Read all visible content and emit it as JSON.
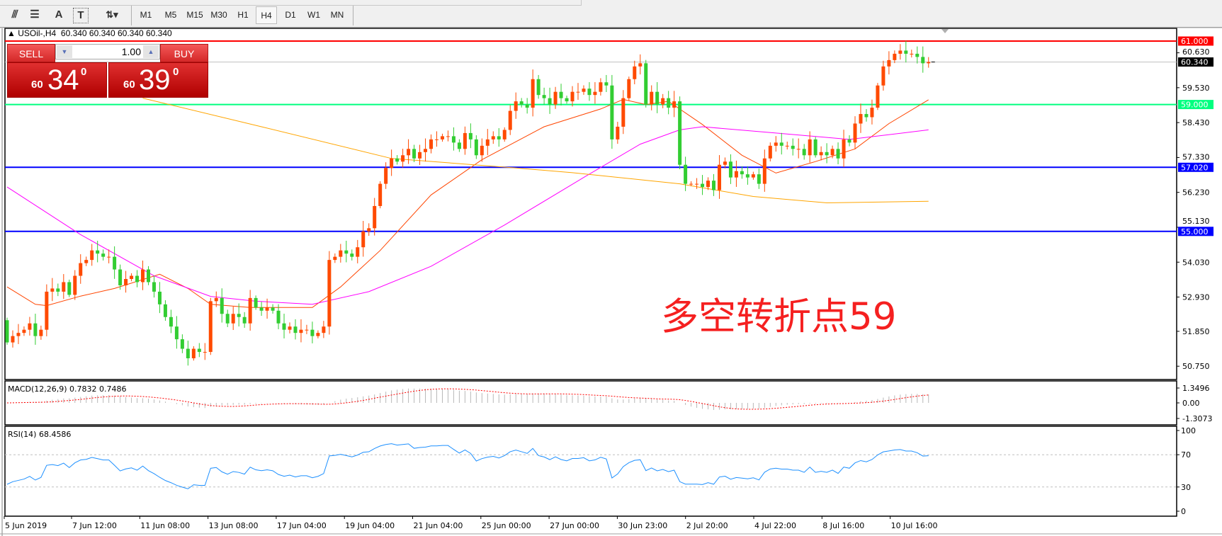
{
  "toolbar": {
    "tools": [
      {
        "name": "elliott-wave-tool",
        "glyph": "⫻"
      },
      {
        "name": "fibonacci-tool",
        "glyph": "☰"
      },
      {
        "name": "text-tool",
        "glyph": "A"
      },
      {
        "name": "text-label-tool",
        "glyph": "T"
      },
      {
        "name": "arrows-tool",
        "glyph": "⇅▾"
      }
    ],
    "timeframes": [
      "M1",
      "M5",
      "M15",
      "M30",
      "H1",
      "H4",
      "D1",
      "W1",
      "MN"
    ],
    "active_timeframe": "H4"
  },
  "chart_header": "USOil-,H4  60.340 60.340 60.340 60.340",
  "trade_panel": {
    "sell_label": "SELL",
    "buy_label": "BUY",
    "lot": "1.00",
    "sell_price": {
      "prefix": "60",
      "big": "34",
      "sup": "0"
    },
    "buy_price": {
      "prefix": "60",
      "big": "39",
      "sup": "0"
    },
    "color": "#d42828"
  },
  "annotation": "多空转折点59",
  "price_axis": {
    "ticks": [
      "60.630",
      "59.530",
      "58.430",
      "57.330",
      "56.230",
      "55.130",
      "54.030",
      "52.930",
      "51.850",
      "50.750"
    ],
    "levels": [
      {
        "label": "61.000",
        "value": 61.0,
        "color": "#ff0000",
        "text": "#ffffff"
      },
      {
        "label": "60.340",
        "value": 60.34,
        "color": "#000000",
        "text": "#ffffff",
        "line": "#c0c0c0"
      },
      {
        "label": "59.000",
        "value": 59.0,
        "color": "#00ff7f",
        "text": "#ffffff"
      },
      {
        "label": "57.020",
        "value": 57.02,
        "color": "#0000ff",
        "text": "#ffffff"
      },
      {
        "label": "55.000",
        "value": 55.0,
        "color": "#0000ff",
        "text": "#ffffff"
      }
    ]
  },
  "macd": {
    "label": "MACD(12,26,9) 0.7832 0.7486",
    "ticks": [
      "1.3496",
      "0.00",
      "-1.3073"
    ]
  },
  "rsi": {
    "label": "RSI(14) 68.4586",
    "ticks": [
      "100",
      "70",
      "30",
      "0"
    ]
  },
  "time_axis": [
    "5 Jun 2019",
    "7 Jun 12:00",
    "11 Jun 08:00",
    "13 Jun 08:00",
    "17 Jun 04:00",
    "19 Jun 04:00",
    "21 Jun 04:00",
    "25 Jun 00:00",
    "27 Jun 00:00",
    "30 Jun 23:00",
    "2 Jul 20:00",
    "4 Jul 22:00",
    "8 Jul 16:00",
    "10 Jul 16:00"
  ],
  "chart_data": {
    "type": "candlestick",
    "symbol": "USOil-",
    "timeframe": "H4",
    "ylim": [
      50.3,
      61.4
    ],
    "grid": false,
    "up_color": "#ff4a00",
    "down_color": "#32cd32",
    "first_open": 52.2,
    "closes": [
      51.5,
      51.7,
      51.8,
      51.9,
      52.1,
      51.7,
      51.9,
      53.1,
      53.2,
      53.1,
      53.4,
      53.0,
      53.6,
      54.0,
      54.1,
      54.4,
      54.3,
      54.2,
      54.2,
      53.8,
      53.3,
      53.5,
      53.6,
      53.4,
      53.8,
      53.4,
      53.1,
      52.7,
      52.3,
      52.0,
      51.6,
      51.3,
      51.0,
      51.3,
      51.2,
      51.2,
      52.8,
      52.9,
      52.4,
      52.1,
      52.4,
      52.3,
      52.1,
      52.9,
      52.6,
      52.5,
      52.6,
      52.5,
      52.1,
      51.9,
      52.0,
      51.8,
      51.9,
      51.9,
      51.7,
      51.8,
      52.0,
      54.1,
      54.2,
      54.4,
      54.3,
      54.2,
      54.5,
      55.0,
      55.1,
      55.8,
      56.5,
      57.0,
      57.3,
      57.2,
      57.4,
      57.6,
      57.3,
      57.5,
      57.6,
      57.9,
      57.9,
      58.0,
      58.0,
      57.8,
      57.6,
      58.1,
      57.9,
      57.4,
      57.7,
      57.9,
      58.0,
      57.9,
      58.2,
      58.8,
      59.1,
      59.0,
      58.9,
      59.8,
      59.3,
      59.2,
      59.0,
      59.4,
      59.2,
      59.1,
      59.4,
      59.4,
      59.5,
      59.3,
      59.4,
      59.7,
      59.6,
      57.9,
      58.3,
      59.2,
      59.8,
      60.2,
      60.3,
      59.0,
      59.4,
      59.0,
      59.2,
      58.9,
      59.1,
      57.1,
      56.5,
      56.5,
      56.5,
      56.4,
      56.6,
      56.3,
      57.1,
      57.2,
      56.7,
      56.9,
      56.8,
      56.7,
      56.8,
      56.5,
      57.3,
      57.7,
      57.8,
      57.7,
      57.7,
      57.6,
      57.6,
      57.4,
      57.9,
      57.4,
      57.5,
      57.4,
      57.6,
      57.3,
      57.9,
      57.8,
      58.4,
      58.7,
      58.6,
      58.9,
      59.6,
      60.2,
      60.4,
      60.6,
      60.7,
      60.6,
      60.6,
      60.5,
      60.3,
      60.34
    ],
    "moving_averages": [
      {
        "color": "#ff4500",
        "points": [
          [
            0,
            53.25
          ],
          [
            5,
            52.7
          ],
          [
            7,
            52.66
          ],
          [
            13,
            52.96
          ],
          [
            19,
            53.2
          ],
          [
            27,
            53.65
          ],
          [
            32,
            53.2
          ],
          [
            36,
            52.7
          ],
          [
            43,
            52.6
          ],
          [
            54,
            52.6
          ],
          [
            59,
            53.25
          ],
          [
            66,
            54.4
          ],
          [
            75,
            56.15
          ],
          [
            84,
            57.26
          ],
          [
            95,
            58.3
          ],
          [
            105,
            58.86
          ],
          [
            109,
            59.16
          ],
          [
            113,
            59.0
          ],
          [
            117,
            59.1
          ],
          [
            123,
            58.37
          ],
          [
            130,
            57.4
          ],
          [
            136,
            56.84
          ],
          [
            143,
            57.2
          ],
          [
            150,
            57.6
          ],
          [
            156,
            58.4
          ],
          [
            163,
            59.15
          ]
        ]
      },
      {
        "color": "#ff00ff",
        "points": [
          [
            0,
            56.4
          ],
          [
            13,
            54.9
          ],
          [
            26,
            53.6
          ],
          [
            36,
            52.95
          ],
          [
            44,
            52.8
          ],
          [
            54,
            52.7
          ],
          [
            64,
            53.1
          ],
          [
            75,
            53.9
          ],
          [
            88,
            55.2
          ],
          [
            102,
            56.7
          ],
          [
            112,
            57.75
          ],
          [
            119,
            58.2
          ],
          [
            123,
            58.3
          ],
          [
            136,
            58.1
          ],
          [
            149,
            57.9
          ],
          [
            163,
            58.2
          ]
        ]
      },
      {
        "color": "#ffa500",
        "points": [
          [
            24,
            59.2
          ],
          [
            45,
            58.3
          ],
          [
            68,
            57.3
          ],
          [
            90,
            57.0
          ],
          [
            100,
            56.85
          ],
          [
            119,
            56.5
          ],
          [
            132,
            56.1
          ],
          [
            145,
            55.9
          ],
          [
            163,
            55.95
          ]
        ]
      }
    ]
  }
}
